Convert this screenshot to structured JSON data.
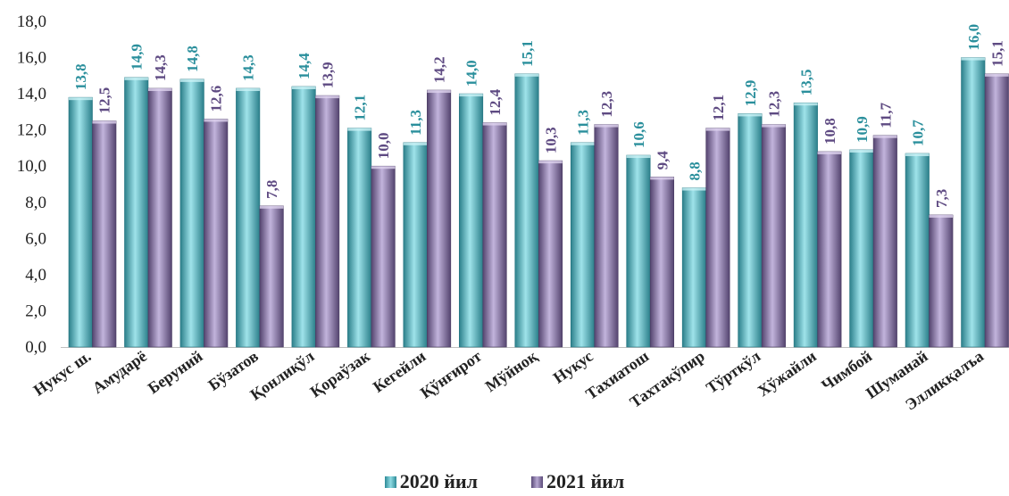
{
  "chart_data": {
    "type": "bar",
    "categories": [
      "Нукус ш.",
      "Амударё",
      "Беруний",
      "Бўзатов",
      "Қонлиқўл",
      "Қораўзак",
      "Кегейли",
      "Қўнғирот",
      "Мўйноқ",
      "Нукус",
      "Тахиатош",
      "Тахтакўпир",
      "Тўрткўл",
      "Хўжайли",
      "Чимбой",
      "Шуманай",
      "Элликқалъа"
    ],
    "series": [
      {
        "name": "2020 йил",
        "values": [
          13.8,
          14.9,
          14.8,
          14.3,
          14.4,
          12.1,
          11.3,
          14.0,
          15.1,
          11.3,
          10.6,
          8.8,
          12.9,
          13.5,
          10.9,
          10.7,
          16.0
        ],
        "labels": [
          "13,8",
          "14,9",
          "14,8",
          "14,3",
          "14,4",
          "12,1",
          "11,3",
          "14,0",
          "15,1",
          "11,3",
          "10,6",
          "8,8",
          "12,9",
          "13,5",
          "10,9",
          "10,7",
          "16,0"
        ],
        "color": "#3aa3b0",
        "label_color": "#2a8f9c"
      },
      {
        "name": "2021 йил",
        "values": [
          12.5,
          14.3,
          12.6,
          7.8,
          13.9,
          10.0,
          14.2,
          12.4,
          10.3,
          12.3,
          9.4,
          12.1,
          12.3,
          10.8,
          11.7,
          7.3,
          15.1
        ],
        "labels": [
          "12,5",
          "14,3",
          "12,6",
          "7,8",
          "13,9",
          "10,0",
          "14,2",
          "12,4",
          "10,3",
          "12,3",
          "9,4",
          "12,1",
          "12,3",
          "10,8",
          "11,7",
          "7,3",
          "15,1"
        ],
        "color": "#8a79a8",
        "label_color": "#5e4a82"
      }
    ],
    "ylim": [
      0,
      18
    ],
    "yticks": [
      "0,0",
      "2,0",
      "4,0",
      "6,0",
      "8,0",
      "10,0",
      "12,0",
      "14,0",
      "16,0",
      "18,0"
    ],
    "grid": false,
    "legend_position": "bottom"
  }
}
